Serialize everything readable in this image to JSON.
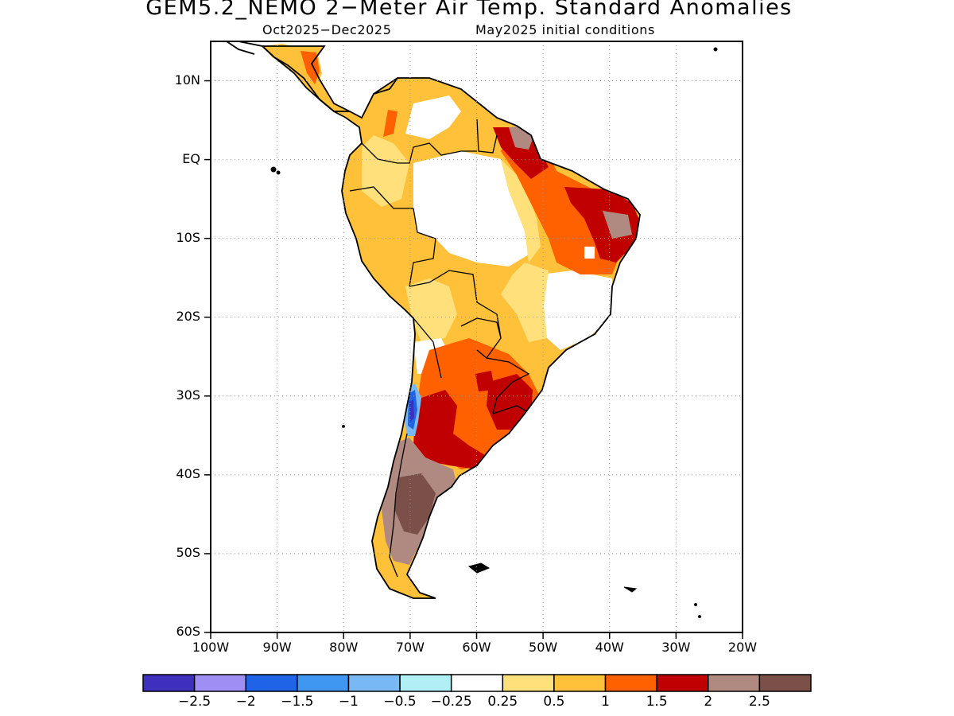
{
  "title": "GEM5.2_NEMO 2−Meter Air Temp. Standard Anomalies",
  "subtitle_period": "Oct2025−Dec2025",
  "subtitle_ic": "May2025 initial conditions",
  "map": {
    "lon_range": [
      -100,
      -20
    ],
    "lat_range": [
      -60,
      15
    ],
    "grid": "dotted",
    "lat_ticks": [
      {
        "value": 10,
        "label": "10N"
      },
      {
        "value": 0,
        "label": "EQ"
      },
      {
        "value": -10,
        "label": "10S"
      },
      {
        "value": -20,
        "label": "20S"
      },
      {
        "value": -30,
        "label": "30S"
      },
      {
        "value": -40,
        "label": "40S"
      },
      {
        "value": -50,
        "label": "50S"
      },
      {
        "value": -60,
        "label": "60S"
      }
    ],
    "lon_ticks": [
      {
        "value": -100,
        "label": "100W"
      },
      {
        "value": -90,
        "label": "90W"
      },
      {
        "value": -80,
        "label": "80W"
      },
      {
        "value": -70,
        "label": "70W"
      },
      {
        "value": -60,
        "label": "60W"
      },
      {
        "value": -50,
        "label": "50W"
      },
      {
        "value": -40,
        "label": "40W"
      },
      {
        "value": -30,
        "label": "30W"
      },
      {
        "value": -20,
        "label": "20W"
      }
    ]
  },
  "colorbar": {
    "colors": [
      "#3f2fbf",
      "#9f8ff5",
      "#1f63e6",
      "#3f97f2",
      "#78b8f5",
      "#b0f0f5",
      "#ffffff",
      "#ffe07a",
      "#ffc03a",
      "#ff6000",
      "#c00000",
      "#b08a80",
      "#7a5048"
    ],
    "labels": [
      "−2.5",
      "−2",
      "−1.5",
      "−1",
      "−0.5",
      "−0.25",
      "0.25",
      "0.5",
      "1",
      "1.5",
      "2",
      "2.5"
    ]
  }
}
